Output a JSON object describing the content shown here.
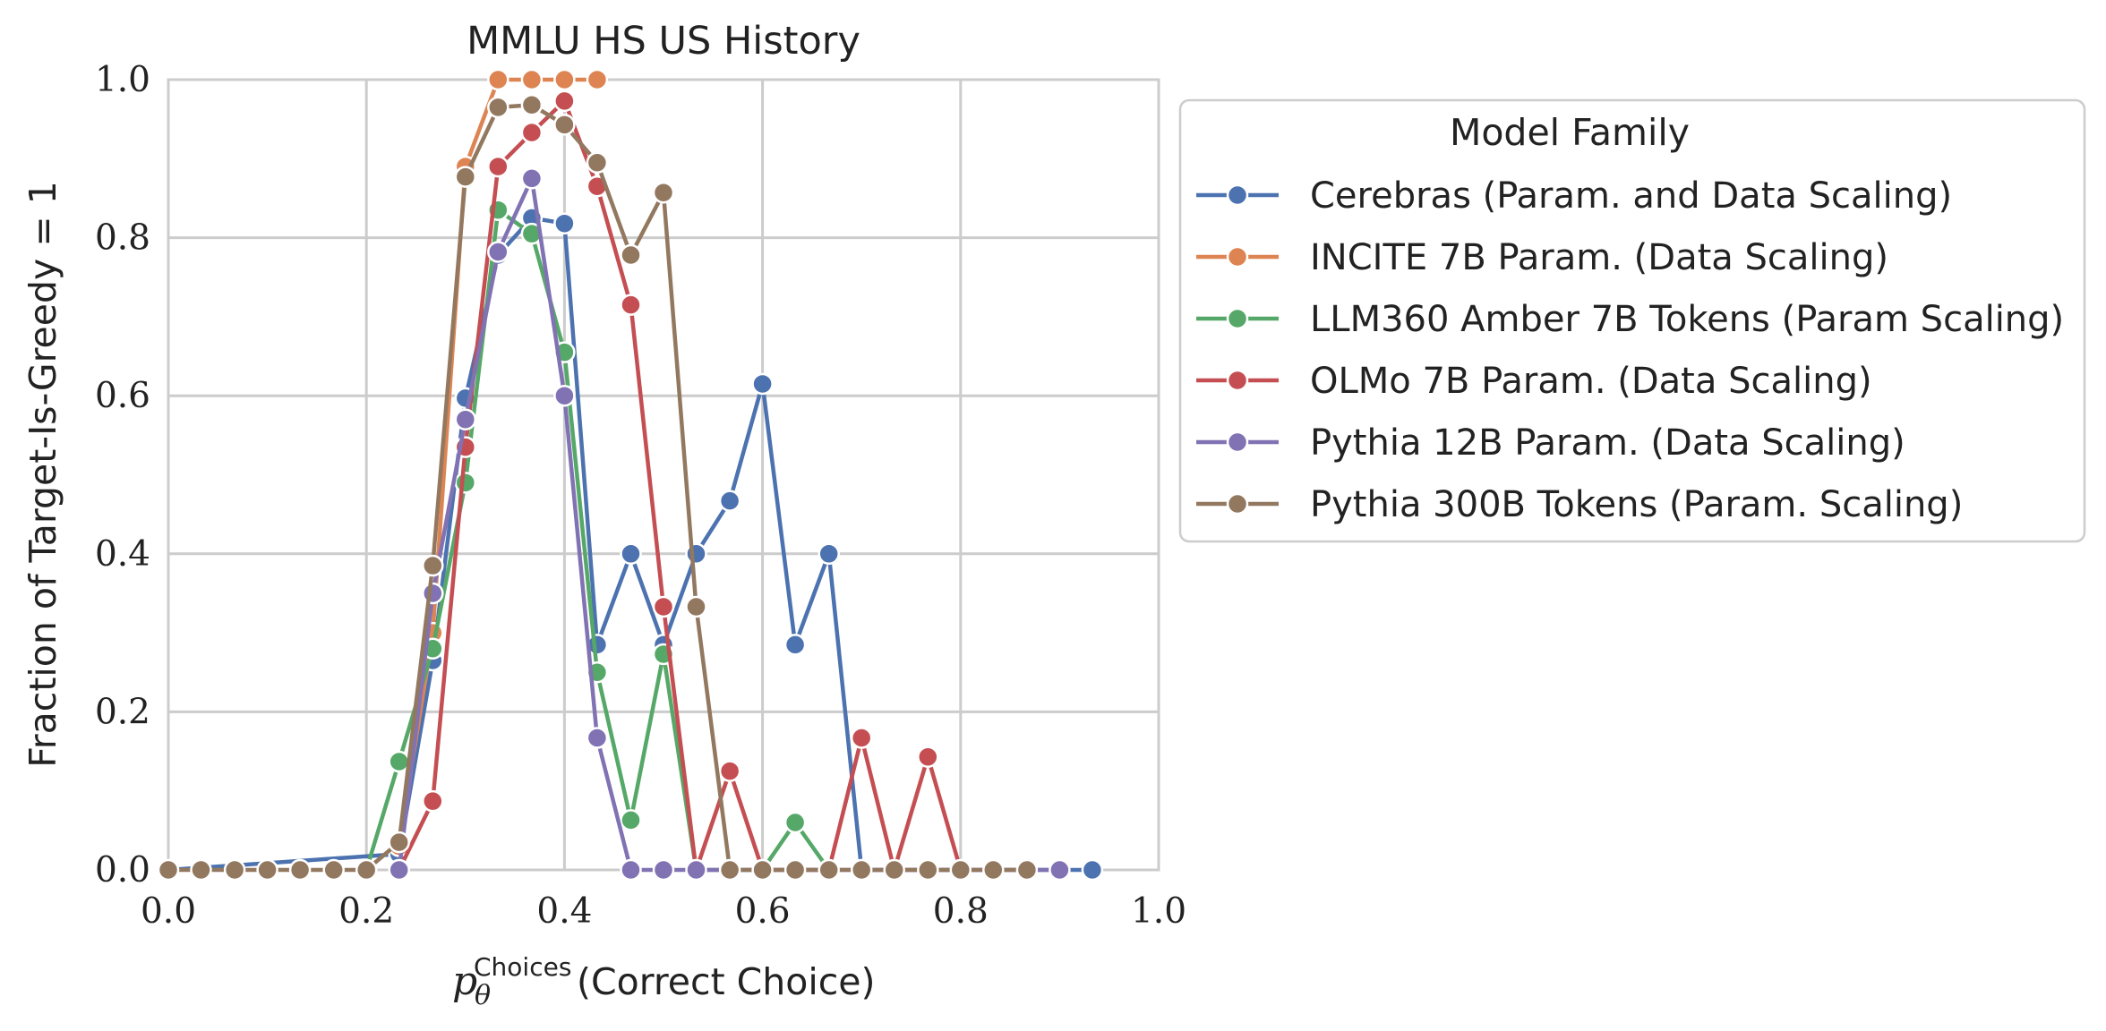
{
  "chart_data": {
    "type": "line",
    "title": "MMLU HS US History",
    "xlabel": {
      "symbol": "p",
      "subscript": "θ",
      "superscript": "Choices",
      "text": "(Correct Choice)"
    },
    "ylabel": "Fraction of Target-Is-Greedy = 1",
    "xlim": [
      0.0,
      1.0
    ],
    "ylim": [
      0.0,
      1.0
    ],
    "xticks": [
      "0.0",
      "0.2",
      "0.4",
      "0.6",
      "0.8",
      "1.0"
    ],
    "yticks": [
      "0.0",
      "0.2",
      "0.4",
      "0.6",
      "0.8",
      "1.0"
    ],
    "grid": true,
    "legend": {
      "title": "Model Family",
      "placement": "outside-right-top"
    },
    "series": [
      {
        "name": "Cerebras (Param. and Data Scaling)",
        "color": "#4c72b0",
        "x": [
          0.0,
          0.233,
          0.267,
          0.3,
          0.333,
          0.367,
          0.4,
          0.433,
          0.467,
          0.5,
          0.533,
          0.567,
          0.6,
          0.633,
          0.667,
          0.7,
          0.933
        ],
        "y": [
          0.0,
          0.02,
          0.265,
          0.597,
          0.778,
          0.825,
          0.818,
          0.285,
          0.4,
          0.285,
          0.4,
          0.467,
          0.615,
          0.285,
          0.4,
          0.0,
          0.0
        ]
      },
      {
        "name": "INCITE 7B Param. (Data Scaling)",
        "color": "#dd8452",
        "x": [
          0.233,
          0.267,
          0.3,
          0.333,
          0.367,
          0.4,
          0.433
        ],
        "y": [
          0.03,
          0.3,
          0.89,
          1.0,
          1.0,
          1.0,
          1.0
        ]
      },
      {
        "name": "LLM360 Amber 7B Tokens (Param Scaling)",
        "color": "#55a868",
        "x": [
          0.2,
          0.233,
          0.267,
          0.3,
          0.333,
          0.367,
          0.4,
          0.433,
          0.467,
          0.5,
          0.533,
          0.567,
          0.6,
          0.633,
          0.667
        ],
        "y": [
          0.0,
          0.137,
          0.28,
          0.49,
          0.835,
          0.805,
          0.655,
          0.25,
          0.063,
          0.273,
          0.0,
          0.0,
          0.0,
          0.06,
          0.0
        ]
      },
      {
        "name": "OLMo 7B Param. (Data Scaling)",
        "color": "#c44e52",
        "x": [
          0.233,
          0.267,
          0.3,
          0.333,
          0.367,
          0.4,
          0.433,
          0.467,
          0.5,
          0.533,
          0.567,
          0.6,
          0.633,
          0.667,
          0.7,
          0.733,
          0.767,
          0.8
        ],
        "y": [
          0.0,
          0.087,
          0.535,
          0.89,
          0.933,
          0.973,
          0.865,
          0.715,
          0.333,
          0.0,
          0.125,
          0.0,
          0.0,
          0.0,
          0.167,
          0.0,
          0.143,
          0.0
        ]
      },
      {
        "name": "Pythia 12B Param. (Data Scaling)",
        "color": "#8172b3",
        "x": [
          0.233,
          0.267,
          0.3,
          0.333,
          0.367,
          0.4,
          0.433,
          0.467,
          0.5,
          0.533,
          0.9
        ],
        "y": [
          0.0,
          0.35,
          0.57,
          0.782,
          0.875,
          0.6,
          0.167,
          0.0,
          0.0,
          0.0,
          0.0
        ]
      },
      {
        "name": "Pythia 300B Tokens (Param. Scaling)",
        "color": "#937860",
        "x": [
          0.0,
          0.033,
          0.067,
          0.1,
          0.133,
          0.167,
          0.2,
          0.233,
          0.267,
          0.3,
          0.333,
          0.367,
          0.4,
          0.433,
          0.467,
          0.5,
          0.533,
          0.567,
          0.6,
          0.633,
          0.667,
          0.7,
          0.733,
          0.767,
          0.8,
          0.833,
          0.867
        ],
        "y": [
          0.0,
          0.0,
          0.0,
          0.0,
          0.0,
          0.0,
          0.0,
          0.035,
          0.385,
          0.877,
          0.965,
          0.968,
          0.943,
          0.895,
          0.778,
          0.857,
          0.333,
          0.0,
          0.0,
          0.0,
          0.0,
          0.0,
          0.0,
          0.0,
          0.0,
          0.0,
          0.0
        ]
      }
    ]
  }
}
